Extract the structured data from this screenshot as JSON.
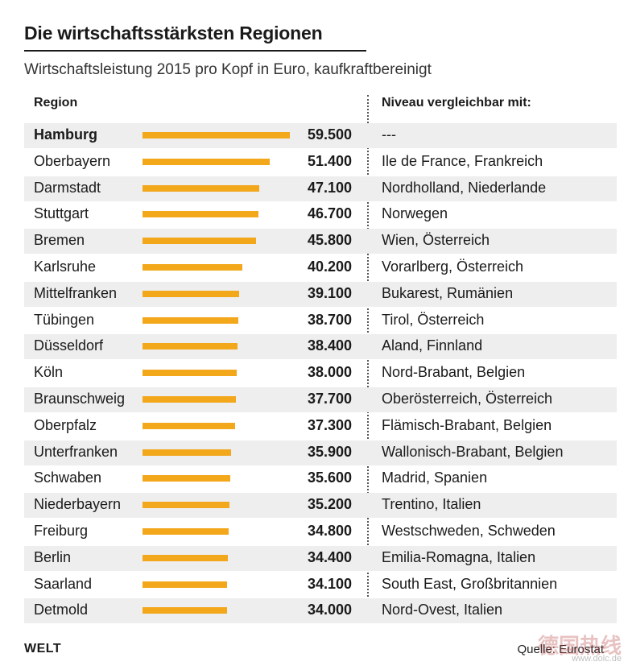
{
  "title": "Die wirtschaftsstärksten Regionen",
  "subtitle": "Wirtschaftsleistung 2015 pro Kopf in Euro, kaufkraftbereinigt",
  "columns": {
    "region": "Region",
    "compare": "Niveau vergleichbar mit:"
  },
  "footer": {
    "brand": "WELT",
    "source": "Quelle: Eurostat"
  },
  "watermark": {
    "text": "德国热线",
    "url": "www.dolc.de"
  },
  "colors": {
    "bar": "#f3a71b",
    "row_shade": "#eeeeee"
  },
  "chart_data": {
    "type": "bar",
    "orientation": "horizontal",
    "title": "Die wirtschaftsstärksten Regionen",
    "subtitle": "Wirtschaftsleistung 2015 pro Kopf in Euro, kaufkraftbereinigt",
    "xlim": [
      0,
      59500
    ],
    "grid": false,
    "rows": [
      {
        "region": "Hamburg",
        "value": 59500,
        "label": "59.500",
        "compare": "---"
      },
      {
        "region": "Oberbayern",
        "value": 51400,
        "label": "51.400",
        "compare": "Ile de France, Frankreich"
      },
      {
        "region": "Darmstadt",
        "value": 47100,
        "label": "47.100",
        "compare": "Nordholland, Niederlande"
      },
      {
        "region": "Stuttgart",
        "value": 46700,
        "label": "46.700",
        "compare": "Norwegen"
      },
      {
        "region": "Bremen",
        "value": 45800,
        "label": "45.800",
        "compare": "Wien, Österreich"
      },
      {
        "region": "Karlsruhe",
        "value": 40200,
        "label": "40.200",
        "compare": "Vorarlberg, Österreich"
      },
      {
        "region": "Mittelfranken",
        "value": 39100,
        "label": "39.100",
        "compare": "Bukarest, Rumänien"
      },
      {
        "region": "Tübingen",
        "value": 38700,
        "label": "38.700",
        "compare": "Tirol, Österreich"
      },
      {
        "region": "Düsseldorf",
        "value": 38400,
        "label": "38.400",
        "compare": "Aland, Finnland"
      },
      {
        "region": "Köln",
        "value": 38000,
        "label": "38.000",
        "compare": "Nord-Brabant, Belgien"
      },
      {
        "region": "Braunschweig",
        "value": 37700,
        "label": "37.700",
        "compare": "Oberösterreich, Österreich"
      },
      {
        "region": "Oberpfalz",
        "value": 37300,
        "label": "37.300",
        "compare": "Flämisch-Brabant, Belgien"
      },
      {
        "region": "Unterfranken",
        "value": 35900,
        "label": "35.900",
        "compare": "Wallonisch-Brabant, Belgien"
      },
      {
        "region": "Schwaben",
        "value": 35600,
        "label": "35.600",
        "compare": "Madrid, Spanien"
      },
      {
        "region": "Niederbayern",
        "value": 35200,
        "label": "35.200",
        "compare": "Trentino, Italien"
      },
      {
        "region": "Freiburg",
        "value": 34800,
        "label": "34.800",
        "compare": "Westschweden, Schweden"
      },
      {
        "region": "Berlin",
        "value": 34400,
        "label": "34.400",
        "compare": "Emilia-Romagna, Italien"
      },
      {
        "region": "Saarland",
        "value": 34100,
        "label": "34.100",
        "compare": "South East, Großbritannien"
      },
      {
        "region": "Detmold",
        "value": 34000,
        "label": "34.000",
        "compare": "Nord-Ovest, Italien"
      }
    ]
  }
}
